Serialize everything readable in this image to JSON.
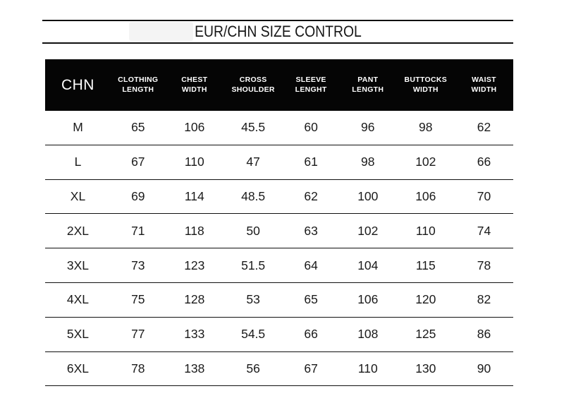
{
  "chart_data": {
    "type": "table",
    "title": "EUR/CHN SIZE CONTROL",
    "columns": [
      "CHN",
      "CLOTHING\nLENGTH",
      "CHEST\nWIDTH",
      "CROSS\nSHOULDER",
      "SLEEVE\nLENGHT",
      "PANT\nLENGTH",
      "BUTTOCKS\nWIDTH",
      "WAIST\nWIDTH"
    ],
    "rows": [
      {
        "size": "M",
        "values": [
          65,
          106,
          45.5,
          60,
          96,
          98,
          62
        ]
      },
      {
        "size": "L",
        "values": [
          67,
          110,
          47,
          61,
          98,
          102,
          66
        ]
      },
      {
        "size": "XL",
        "values": [
          69,
          114,
          48.5,
          62,
          100,
          106,
          70
        ]
      },
      {
        "size": "2XL",
        "values": [
          71,
          118,
          50,
          63,
          102,
          110,
          74
        ]
      },
      {
        "size": "3XL",
        "values": [
          73,
          123,
          51.5,
          64,
          104,
          115,
          78
        ]
      },
      {
        "size": "4XL",
        "values": [
          75,
          128,
          53,
          65,
          106,
          120,
          82
        ]
      },
      {
        "size": "5XL",
        "values": [
          77,
          133,
          54.5,
          66,
          108,
          125,
          86
        ]
      },
      {
        "size": "6XL",
        "values": [
          78,
          138,
          56,
          67,
          110,
          130,
          90
        ]
      }
    ],
    "layout": {
      "header_position": "top",
      "grid": "horizontal-rules-only"
    }
  },
  "colors": {
    "header_bg": "#050505",
    "header_text": "#ffffff",
    "body_text": "#1a1a1a",
    "rule": "#101010",
    "watermark": "#f4f4f4",
    "background": "#ffffff"
  }
}
